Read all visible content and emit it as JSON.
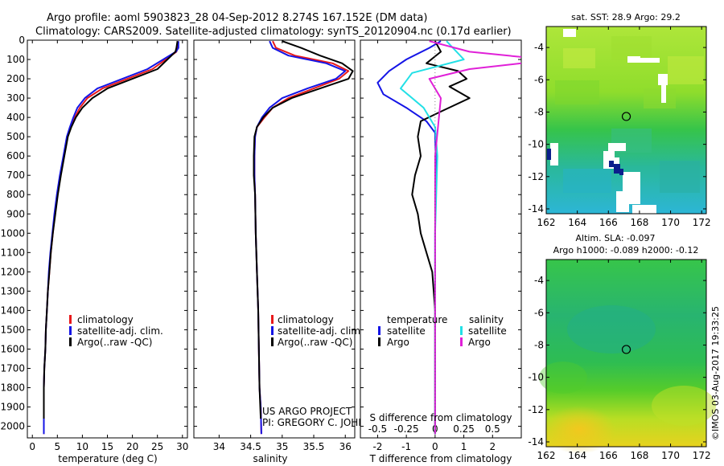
{
  "header": {
    "line1": "Argo profile: aoml 5903823_28 04-Sep-2012 8.274S 167.152E (DM data)",
    "line2": "Climatology: CARS2009. Satellite-adjusted climatology: synTS_20120904.nc (0.17d earlier)"
  },
  "colors": {
    "climatology": "#e8191b",
    "satellite": "#1414e6",
    "argo": "#000000",
    "sal_satellite": "#22e0e6",
    "sal_argo": "#e020d8"
  },
  "credits": {
    "project": "US ARGO PROJECT",
    "pi": "PI: GREGORY C. JOHNSON",
    "imos_stamp": "©IMOS 03-Aug-2017 19:33:25"
  },
  "chart_data": [
    {
      "id": "temperature",
      "type": "line",
      "xlabel": "temperature (deg C)",
      "ylabel": "",
      "xlim": [
        -1,
        31
      ],
      "ylim": [
        2060,
        0
      ],
      "xticks": [
        0,
        5,
        10,
        15,
        20,
        25,
        30
      ],
      "yticks": [
        0,
        100,
        200,
        300,
        400,
        500,
        600,
        700,
        800,
        900,
        1000,
        1100,
        1200,
        1300,
        1400,
        1500,
        1600,
        1700,
        1800,
        1900,
        2000
      ],
      "legend": [
        "climatology",
        "satellite-adj. clim.",
        "Argo(..raw -QC)"
      ],
      "series": [
        {
          "name": "climatology",
          "color": "#e8191b",
          "x": [
            29.0,
            29.0,
            28.8,
            24,
            19,
            14,
            11,
            9.5,
            8.5,
            7.6,
            7.0,
            6.3,
            5.6,
            5.0,
            4.5,
            4.1,
            3.7,
            3.4,
            3.1,
            2.9,
            2.7,
            2.6,
            2.4,
            2.3,
            2.3
          ],
          "y": [
            5,
            40,
            60,
            150,
            200,
            250,
            300,
            350,
            400,
            450,
            500,
            600,
            700,
            800,
            900,
            1000,
            1100,
            1200,
            1300,
            1400,
            1500,
            1600,
            1700,
            1800,
            2040
          ]
        },
        {
          "name": "satellite-adj. clim.",
          "color": "#1414e6",
          "x": [
            29.2,
            29.2,
            28.7,
            23,
            18,
            13,
            10.5,
            9.0,
            8.2,
            7.5,
            6.9,
            6.2,
            5.5,
            4.9,
            4.4,
            4.0,
            3.6,
            3.3,
            3.1,
            2.9,
            2.7,
            2.6,
            2.4,
            2.3,
            2.3
          ],
          "y": [
            5,
            40,
            60,
            150,
            200,
            250,
            300,
            350,
            400,
            450,
            500,
            600,
            700,
            800,
            900,
            1000,
            1100,
            1200,
            1300,
            1400,
            1500,
            1600,
            1700,
            1800,
            2040
          ]
        },
        {
          "name": "Argo(..raw -QC)",
          "color": "#000000",
          "x": [
            29.0,
            28.8,
            28.6,
            25,
            20,
            15,
            12,
            10,
            8.7,
            7.8,
            7.1,
            6.4,
            5.7,
            5.1,
            4.6,
            4.1,
            3.7,
            3.4,
            3.1,
            2.9,
            2.7,
            2.6,
            2.4,
            2.3,
            2.3
          ],
          "y": [
            5,
            40,
            60,
            150,
            200,
            250,
            300,
            350,
            400,
            450,
            500,
            600,
            700,
            800,
            900,
            1000,
            1100,
            1200,
            1300,
            1400,
            1500,
            1600,
            1700,
            1800,
            1960
          ]
        }
      ]
    },
    {
      "id": "salinity",
      "type": "line",
      "xlabel": "salinity",
      "xlim": [
        33.6,
        36.15
      ],
      "ylim": [
        2060,
        0
      ],
      "xticks": [
        34,
        34.5,
        35,
        35.5,
        36
      ],
      "xticklabels": [
        "34",
        "34.5",
        "35",
        "35.5",
        "36"
      ],
      "legend": [
        "climatology",
        "satellite-adj. clim.",
        "Argo(..raw -QC)"
      ],
      "series": [
        {
          "name": "climatology",
          "color": "#e8191b",
          "x": [
            34.85,
            34.9,
            35.2,
            35.8,
            36.05,
            35.9,
            35.5,
            35.1,
            34.85,
            34.72,
            34.6,
            34.57,
            34.56,
            34.56,
            34.57,
            34.58,
            34.6,
            34.62,
            34.63,
            34.64,
            34.66,
            34.67
          ],
          "y": [
            5,
            40,
            80,
            120,
            160,
            200,
            250,
            300,
            350,
            400,
            450,
            500,
            600,
            700,
            800,
            1000,
            1200,
            1400,
            1600,
            1800,
            1900,
            2040
          ]
        },
        {
          "name": "satellite-adj. clim.",
          "color": "#1414e6",
          "x": [
            34.8,
            34.85,
            35.1,
            35.7,
            36.0,
            35.85,
            35.4,
            35.0,
            34.8,
            34.68,
            34.6,
            34.57,
            34.56,
            34.56,
            34.57,
            34.58,
            34.6,
            34.62,
            34.63,
            34.64,
            34.66,
            34.67
          ],
          "y": [
            5,
            40,
            80,
            120,
            160,
            200,
            250,
            300,
            350,
            400,
            450,
            500,
            600,
            700,
            800,
            1000,
            1200,
            1400,
            1600,
            1800,
            1900,
            2040
          ]
        },
        {
          "name": "Argo(..raw -QC)",
          "color": "#000000",
          "x": [
            35.0,
            35.3,
            35.6,
            35.95,
            36.12,
            36.05,
            35.6,
            35.15,
            34.85,
            34.7,
            34.6,
            34.56,
            34.55,
            34.55,
            34.57,
            34.58,
            34.6,
            34.62,
            34.63,
            34.64,
            34.66
          ],
          "y": [
            5,
            40,
            80,
            120,
            160,
            200,
            250,
            300,
            350,
            400,
            450,
            500,
            600,
            700,
            800,
            1000,
            1200,
            1400,
            1600,
            1800,
            1960
          ]
        }
      ]
    },
    {
      "id": "difference",
      "type": "line",
      "xlabel": "T difference from climatology",
      "xlabel_top": "S difference from climatology",
      "xlim_T": [
        -2.6,
        3.0
      ],
      "xticks_T": [
        -2,
        -1,
        0,
        1,
        2
      ],
      "xticks_S": [
        -0.5,
        -0.25,
        0,
        0.25,
        0.5
      ],
      "xticklabels_S": [
        "-0.5",
        "-0.25",
        "0",
        "0.25",
        "0.5"
      ],
      "ylim": [
        2060,
        0
      ],
      "legend_temperature_title": "temperature",
      "legend_salinity_title": "salinity",
      "legend": [
        "satellite",
        "Argo",
        "satellite",
        "Argo"
      ],
      "series": [
        {
          "name": "T satellite",
          "color": "#1414e6",
          "x": [
            0.2,
            -0.2,
            -1.0,
            -1.6,
            -2.0,
            -1.8,
            -1.0,
            -0.3,
            0.0,
            0.02,
            0.0,
            0.0
          ],
          "y": [
            5,
            40,
            100,
            160,
            220,
            280,
            350,
            420,
            480,
            600,
            1000,
            2040
          ]
        },
        {
          "name": "T Argo",
          "color": "#000000",
          "x": [
            0.0,
            0.2,
            -0.3,
            0.8,
            1.1,
            0.5,
            1.2,
            0.2,
            -0.5,
            -0.6,
            -0.5,
            -0.7,
            -0.8,
            -0.6,
            -0.5,
            -0.3,
            -0.1,
            0.0,
            0.0
          ],
          "y": [
            5,
            60,
            120,
            160,
            200,
            240,
            300,
            370,
            420,
            500,
            600,
            700,
            800,
            900,
            1000,
            1100,
            1200,
            1400,
            2040
          ]
        },
        {
          "name": "S satellite",
          "color": "#22e0e6",
          "x": [
            0.1,
            0.25,
            -0.2,
            -0.3,
            -0.1,
            0.0,
            0.02,
            0.0,
            0.0
          ],
          "y": [
            5,
            100,
            170,
            250,
            350,
            450,
            600,
            1000,
            2040
          ]
        },
        {
          "name": "S Argo",
          "color": "#e020d8",
          "x": [
            -0.05,
            0.3,
            0.8,
            0.9,
            0.3,
            -0.05,
            0.05,
            0.0,
            0.0
          ],
          "y": [
            5,
            60,
            90,
            110,
            150,
            200,
            300,
            600,
            2040
          ]
        }
      ]
    },
    {
      "id": "sst_map",
      "type": "heatmap",
      "title": "sat. SST: 28.9 Argo: 29.2",
      "xlim": [
        162,
        172.3
      ],
      "ylim": [
        -14.3,
        -2.7
      ],
      "xticks": [
        162,
        164,
        166,
        168,
        170,
        172
      ],
      "yticks": [
        -4,
        -6,
        -8,
        -10,
        -12,
        -14
      ],
      "marker": {
        "lon": 167.152,
        "lat": -8.274
      }
    },
    {
      "id": "sla_map",
      "type": "heatmap",
      "title_line1": "Altim. SLA: -0.097",
      "title_line2": "Argo h1000: -0.089 h2000: -0.12",
      "xlim": [
        162,
        172.3
      ],
      "ylim": [
        -14.3,
        -2.7
      ],
      "xticks": [
        162,
        164,
        166,
        168,
        170,
        172
      ],
      "yticks": [
        -4,
        -6,
        -8,
        -10,
        -12,
        -14
      ],
      "marker": {
        "lon": 167.152,
        "lat": -8.274
      }
    }
  ]
}
